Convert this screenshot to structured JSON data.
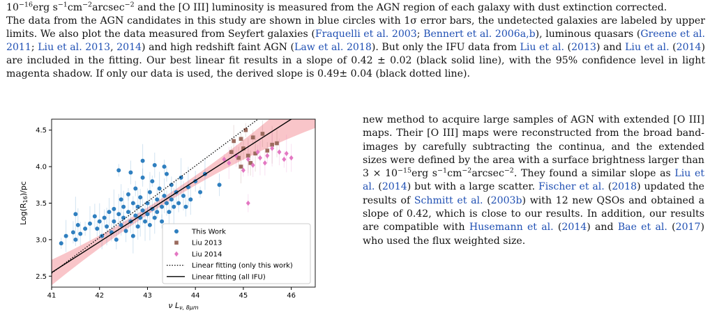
{
  "intro": {
    "line1": "10<sup>−16</sup>erg s<sup>−1</sup>cm<sup>−2</sup>arcsec<sup>−2</sup> and the [O III] luminosity is measured from the AGN region of each galaxy with dust extinction corrected.",
    "body": "The data from the AGN candidates in this study are shown in blue circles with 1σ error bars, the undetected galaxies are labeled by upper limits. We also plot the data measured from Seyfert galaxies (<span class='ref'>Fraquelli et al. 2003</span>; <span class='ref'>Bennert et al. 2006a,b</span>), luminous quasars (<span class='ref'>Greene et al. 2011</span>; <span class='ref'>Liu et al. 2013</span>, <span class='ref'>2014</span>) and high redshift faint AGN (<span class='ref'>Law et al. 2018</span>). But only the IFU data from <span class='ref'>Liu et al.</span> (<span class='ref'>2013</span>) and <span class='ref'>Liu et al.</span> (<span class='ref'>2014</span>) are included in the fitting. Our best linear fit results in a slope of 0.42 ± 0.02 (black solid line), with the 95% confidence level in light magenta shadow. If only our data is used, the derived slope is 0.49± 0.04 (black dotted line)."
  },
  "column": {
    "text": "new method to acquire large samples of AGN with extended [O III] maps. Their [O III] maps were reconstructed from the broad band-images by carefully subtracting the continua, and the extended sizes were defined by the area with a surface brightness larger than 3 × 10<sup>−15</sup>erg s<sup>−1</sup>cm<sup>−2</sup>arcsec<sup>−2</sup>. They found a similar slope as <span class='ref'>Liu et al.</span> (<span class='ref'>2014</span>) but with a large scatter. <span class='ref'>Fischer et al.</span> (<span class='ref'>2018</span>) updated the results of <span class='ref'>Schmitt et al.</span> (<span class='ref'>2003b</span>) with 12 new QSOs and obtained a slope of 0.42, which is close to our results. In addition, our results are compatible with <span class='ref'>Husemann et al.</span> (<span class='ref'>2014</span>) and <span class='ref'>Bae et al.</span> (<span class='ref'>2017</span>) who used the flux weighted size."
  },
  "colors": {
    "this_work": "#2f7fbf",
    "liu2013": "#9b6b5e",
    "liu2014": "#e377c2",
    "band": "#f7b2b7",
    "ref_link": "#1f4fb3"
  },
  "chart_data": {
    "type": "scatter",
    "title": "",
    "xlabel": "ν L_ν,8μm",
    "ylabel": "Log(R_16)/pc",
    "xlim": [
      41,
      46.5
    ],
    "ylim": [
      2.35,
      4.65
    ],
    "xticks": [
      "41",
      "42",
      "43",
      "44",
      "45",
      "46"
    ],
    "yticks": [
      "2.5",
      "3.0",
      "3.5",
      "4.0",
      "4.5"
    ],
    "legend_position": "lower-right",
    "series": [
      {
        "name": "This Work",
        "marker": "circle",
        "points": [
          [
            41.2,
            2.95
          ],
          [
            41.3,
            3.05
          ],
          [
            41.45,
            3.1
          ],
          [
            41.5,
            3.0
          ],
          [
            41.55,
            3.2
          ],
          [
            41.6,
            3.08
          ],
          [
            41.7,
            3.15
          ],
          [
            41.8,
            3.22
          ],
          [
            41.9,
            3.32
          ],
          [
            41.95,
            3.15
          ],
          [
            42.0,
            3.25
          ],
          [
            42.05,
            3.05
          ],
          [
            42.1,
            3.3
          ],
          [
            42.15,
            3.18
          ],
          [
            42.2,
            3.38
          ],
          [
            42.25,
            3.1
          ],
          [
            42.3,
            3.42
          ],
          [
            42.3,
            3.25
          ],
          [
            42.35,
            3.0
          ],
          [
            42.4,
            3.35
          ],
          [
            42.45,
            3.55
          ],
          [
            42.45,
            3.2
          ],
          [
            42.5,
            3.3
          ],
          [
            42.5,
            3.45
          ],
          [
            42.55,
            3.12
          ],
          [
            42.6,
            3.62
          ],
          [
            42.6,
            3.38
          ],
          [
            42.65,
            3.25
          ],
          [
            42.7,
            3.5
          ],
          [
            42.7,
            3.05
          ],
          [
            42.75,
            3.33
          ],
          [
            42.75,
            3.7
          ],
          [
            42.8,
            3.45
          ],
          [
            42.8,
            3.18
          ],
          [
            42.85,
            3.58
          ],
          [
            42.85,
            3.3
          ],
          [
            42.9,
            3.4
          ],
          [
            42.9,
            3.85
          ],
          [
            42.95,
            3.25
          ],
          [
            43.0,
            3.5
          ],
          [
            43.0,
            3.35
          ],
          [
            43.05,
            3.65
          ],
          [
            43.05,
            3.2
          ],
          [
            43.1,
            3.42
          ],
          [
            43.1,
            3.8
          ],
          [
            43.15,
            3.3
          ],
          [
            43.2,
            3.55
          ],
          [
            43.2,
            3.38
          ],
          [
            43.25,
            3.7
          ],
          [
            43.3,
            3.45
          ],
          [
            43.3,
            3.25
          ],
          [
            43.35,
            3.6
          ],
          [
            43.4,
            3.5
          ],
          [
            43.4,
            3.9
          ],
          [
            43.45,
            3.38
          ],
          [
            43.5,
            3.55
          ],
          [
            43.5,
            3.75
          ],
          [
            43.55,
            3.45
          ],
          [
            43.6,
            3.65
          ],
          [
            43.65,
            3.5
          ],
          [
            43.7,
            3.85
          ],
          [
            43.75,
            3.6
          ],
          [
            43.8,
            3.45
          ],
          [
            43.85,
            3.72
          ],
          [
            43.9,
            3.55
          ],
          [
            44.0,
            3.8
          ],
          [
            44.1,
            3.65
          ],
          [
            44.2,
            3.9
          ],
          [
            44.5,
            3.75
          ],
          [
            42.4,
            3.95
          ],
          [
            42.9,
            4.08
          ],
          [
            42.65,
            3.92
          ],
          [
            43.35,
            4.0
          ],
          [
            41.5,
            3.35
          ],
          [
            43.15,
            4.02
          ]
        ]
      },
      {
        "name": "Liu 2013",
        "marker": "square",
        "points": [
          [
            44.75,
            4.2
          ],
          [
            44.8,
            4.35
          ],
          [
            44.9,
            4.12
          ],
          [
            44.95,
            4.38
          ],
          [
            44.95,
            4.0
          ],
          [
            45.0,
            4.25
          ],
          [
            45.05,
            4.5
          ],
          [
            45.1,
            4.15
          ],
          [
            45.15,
            4.05
          ],
          [
            45.2,
            4.4
          ],
          [
            45.25,
            4.18
          ],
          [
            45.4,
            4.45
          ],
          [
            45.5,
            4.22
          ],
          [
            45.6,
            4.3
          ],
          [
            45.7,
            4.32
          ]
        ]
      },
      {
        "name": "Liu 2014",
        "marker": "diamond",
        "points": [
          [
            44.6,
            4.1
          ],
          [
            44.7,
            4.05
          ],
          [
            44.85,
            4.15
          ],
          [
            45.0,
            3.95
          ],
          [
            45.1,
            4.1
          ],
          [
            45.2,
            4.02
          ],
          [
            45.3,
            4.2
          ],
          [
            45.35,
            4.12
          ],
          [
            45.45,
            4.05
          ],
          [
            45.5,
            4.15
          ],
          [
            45.6,
            4.25
          ],
          [
            45.75,
            4.2
          ],
          [
            45.85,
            4.1
          ],
          [
            45.9,
            4.18
          ],
          [
            46.0,
            4.12
          ],
          [
            45.1,
            3.5
          ]
        ]
      }
    ],
    "fits": [
      {
        "name": "Linear fitting (only this work)",
        "style": "dotted",
        "slope": 0.49,
        "intercept": -17.55
      },
      {
        "name": "Linear fitting (all IFU)",
        "style": "solid",
        "slope": 0.42,
        "intercept": -14.67
      }
    ],
    "band": {
      "label": "95% confidence",
      "half_width_at_ends": 0.13,
      "half_width_center": 0.05
    }
  }
}
